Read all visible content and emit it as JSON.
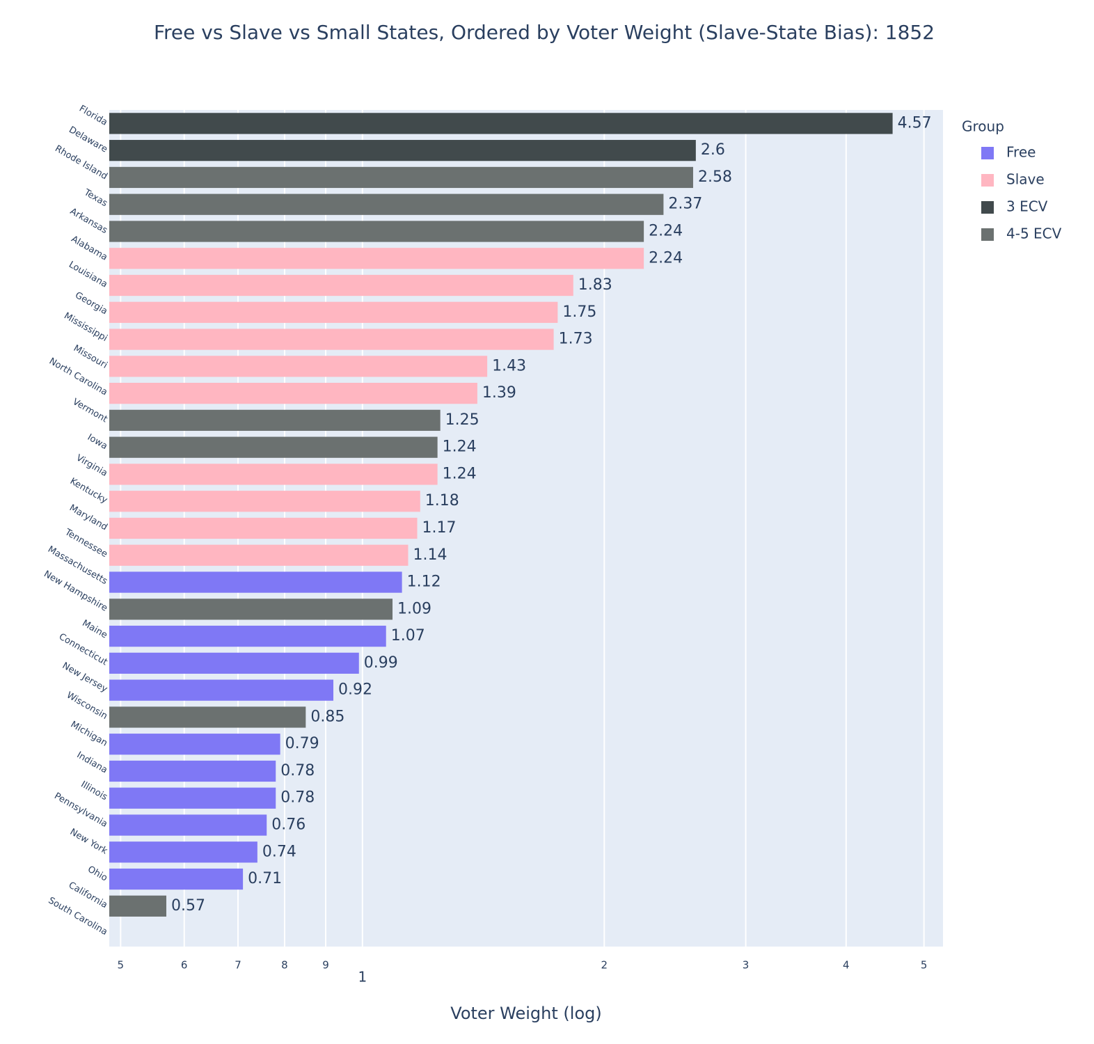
{
  "chart_data": {
    "type": "bar",
    "orientation": "horizontal",
    "title": "Free vs Slave vs Small States, Ordered by Voter Weight (Slave-State Bias): 1852",
    "x_label": "Voter Weight (log)",
    "legend_title": "Group",
    "legend_position": "right",
    "log_x": true,
    "grid": true,
    "categories": [
      "Florida",
      "Delaware",
      "Rhode Island",
      "Texas",
      "Arkansas",
      "Alabama",
      "Louisiana",
      "Georgia",
      "Mississippi",
      "Missouri",
      "North Carolina",
      "Vermont",
      "Iowa",
      "Virginia",
      "Kentucky",
      "Maryland",
      "Tennessee",
      "Massachusetts",
      "New Hampshire",
      "Maine",
      "Connecticut",
      "New Jersey",
      "Wisconsin",
      "Michigan",
      "Indiana",
      "Illinois",
      "Pennsylvania",
      "New York",
      "Ohio",
      "California",
      "South Carolina"
    ],
    "series": [
      {
        "name": "Free",
        "color": "#7f78f5",
        "values": [
          null,
          null,
          null,
          null,
          null,
          null,
          null,
          null,
          null,
          null,
          null,
          null,
          null,
          null,
          null,
          null,
          null,
          1.12,
          null,
          1.07,
          0.99,
          0.92,
          null,
          0.79,
          0.78,
          0.78,
          0.76,
          0.74,
          0.71,
          null,
          null
        ]
      },
      {
        "name": "Slave",
        "color": "#ffb6c1",
        "values": [
          null,
          null,
          null,
          null,
          null,
          2.24,
          1.83,
          1.75,
          1.73,
          1.43,
          1.39,
          null,
          null,
          1.24,
          1.18,
          1.17,
          1.14,
          null,
          null,
          null,
          null,
          null,
          null,
          null,
          null,
          null,
          null,
          null,
          null,
          null,
          null
        ]
      },
      {
        "name": "3 ECV",
        "color": "#414a4c",
        "values": [
          4.57,
          2.6,
          null,
          null,
          null,
          null,
          null,
          null,
          null,
          null,
          null,
          null,
          null,
          null,
          null,
          null,
          null,
          null,
          null,
          null,
          null,
          null,
          null,
          null,
          null,
          null,
          null,
          null,
          null,
          null,
          null
        ]
      },
      {
        "name": "4-5 ECV",
        "color": "#6b7170",
        "values": [
          null,
          null,
          2.58,
          2.37,
          2.24,
          null,
          null,
          null,
          null,
          null,
          null,
          1.25,
          1.24,
          null,
          null,
          null,
          null,
          null,
          1.09,
          null,
          null,
          null,
          0.85,
          null,
          null,
          null,
          null,
          null,
          null,
          0.57,
          null
        ]
      }
    ],
    "xlim": [
      0.484,
      5.28
    ],
    "xticks": [
      {
        "value": 0.5,
        "label": "5"
      },
      {
        "value": 0.6,
        "label": "6"
      },
      {
        "value": 0.7,
        "label": "7"
      },
      {
        "value": 0.8,
        "label": "8"
      },
      {
        "value": 0.9,
        "label": "9"
      },
      1,
      2,
      3,
      4,
      5
    ]
  }
}
